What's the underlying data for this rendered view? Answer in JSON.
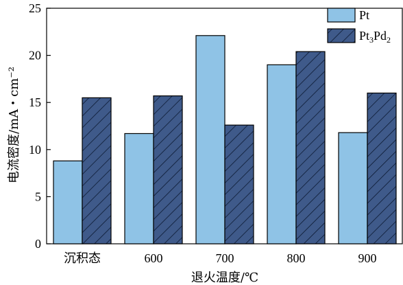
{
  "chart_data": {
    "type": "bar",
    "title": "",
    "xlabel": "退火温度/℃",
    "ylabel": "电流密度/mA・cm⁻²",
    "ylim": [
      0,
      25
    ],
    "yticks": [
      0,
      5,
      10,
      15,
      20,
      25
    ],
    "categories": [
      "沉积态",
      "600",
      "700",
      "800",
      "900"
    ],
    "series": [
      {
        "name": "Pt",
        "values": [
          8.8,
          11.7,
          22.1,
          19.0,
          11.8
        ],
        "color": "#8fc3e6",
        "pattern": "solid"
      },
      {
        "name": "Pt3Pd2",
        "values": [
          15.5,
          15.7,
          12.6,
          20.4,
          16.0
        ],
        "color": "#3f5a8a",
        "pattern": "hatch"
      }
    ],
    "legend": {
      "position": "top-right",
      "items": [
        {
          "series": "Pt",
          "label": "Pt"
        },
        {
          "series": "Pt3Pd2",
          "label_base": "Pt",
          "sub1": "3",
          "mid": "Pd",
          "sub2": "2"
        }
      ]
    },
    "grid": false
  }
}
